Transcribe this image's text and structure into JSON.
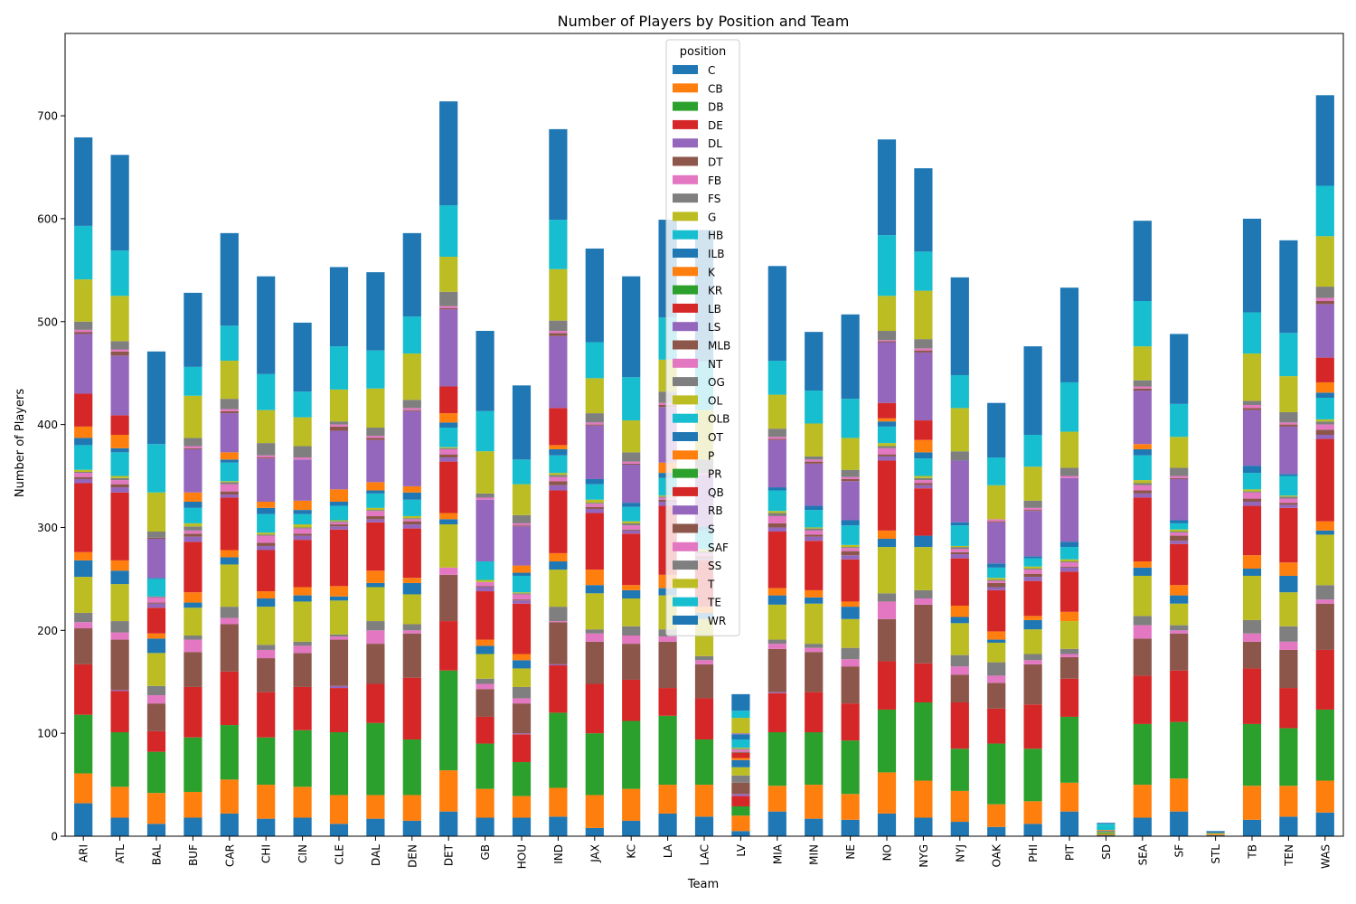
{
  "chart_data": {
    "type": "bar",
    "stacked": true,
    "title": "Number of Players by Position and Team",
    "xlabel": "Team",
    "ylabel": "Number of Players",
    "ylim": [
      0,
      780
    ],
    "yticks": [
      0,
      100,
      200,
      300,
      400,
      500,
      600,
      700
    ],
    "grid": false,
    "legend": {
      "title": "position",
      "placement": "top-center"
    },
    "categories": [
      "ARI",
      "ATL",
      "BAL",
      "BUF",
      "CAR",
      "CHI",
      "CIN",
      "CLE",
      "DAL",
      "DEN",
      "DET",
      "GB",
      "HOU",
      "IND",
      "JAX",
      "KC",
      "LA",
      "LAC",
      "LV",
      "MIA",
      "MIN",
      "NE",
      "NO",
      "NYG",
      "NYJ",
      "OAK",
      "PHI",
      "PIT",
      "SD",
      "SEA",
      "SF",
      "STL",
      "TB",
      "TEN",
      "WAS"
    ],
    "series": [
      {
        "name": "C",
        "color": "#1f77b4",
        "values": [
          32,
          18,
          12,
          18,
          22,
          17,
          18,
          12,
          17,
          15,
          24,
          18,
          18,
          19,
          8,
          15,
          22,
          19,
          5,
          24,
          17,
          16,
          22,
          18,
          14,
          9,
          12,
          24,
          1,
          18,
          24,
          1,
          16,
          19,
          23
        ]
      },
      {
        "name": "CB",
        "color": "#ff7f0e",
        "values": [
          29,
          30,
          30,
          25,
          33,
          33,
          30,
          28,
          23,
          25,
          40,
          28,
          21,
          28,
          32,
          31,
          28,
          31,
          15,
          25,
          33,
          25,
          40,
          36,
          30,
          22,
          22,
          28,
          1,
          32,
          32,
          1,
          33,
          30,
          31
        ]
      },
      {
        "name": "DB",
        "color": "#2ca02c",
        "values": [
          57,
          53,
          40,
          53,
          53,
          46,
          55,
          61,
          70,
          54,
          97,
          44,
          33,
          73,
          60,
          66,
          67,
          44,
          9,
          52,
          51,
          52,
          61,
          76,
          41,
          59,
          51,
          64,
          1,
          59,
          55,
          0,
          60,
          56,
          69
        ]
      },
      {
        "name": "DE",
        "color": "#d62728",
        "values": [
          49,
          40,
          20,
          49,
          52,
          44,
          42,
          43,
          38,
          60,
          48,
          26,
          27,
          46,
          48,
          40,
          27,
          40,
          10,
          38,
          39,
          36,
          47,
          38,
          45,
          34,
          43,
          37,
          0,
          47,
          50,
          0,
          54,
          39,
          58
        ]
      },
      {
        "name": "DL",
        "color": "#9467bd",
        "values": [
          0,
          1,
          0,
          0,
          0,
          0,
          0,
          2,
          0,
          0,
          0,
          0,
          1,
          1,
          0,
          0,
          0,
          0,
          2,
          1,
          0,
          0,
          0,
          0,
          0,
          0,
          0,
          0,
          0,
          0,
          0,
          0,
          0,
          0,
          0
        ]
      },
      {
        "name": "DT",
        "color": "#8c564b",
        "values": [
          35,
          49,
          27,
          34,
          46,
          33,
          33,
          45,
          39,
          43,
          45,
          27,
          29,
          41,
          41,
          35,
          45,
          33,
          11,
          42,
          39,
          36,
          41,
          57,
          27,
          25,
          39,
          21,
          0,
          36,
          36,
          0,
          26,
          37,
          45
        ]
      },
      {
        "name": "FB",
        "color": "#e377c2",
        "values": [
          6,
          7,
          8,
          12,
          6,
          8,
          7,
          3,
          13,
          3,
          7,
          5,
          5,
          1,
          8,
          8,
          5,
          4,
          0,
          5,
          4,
          7,
          17,
          6,
          8,
          7,
          4,
          3,
          0,
          13,
          3,
          0,
          8,
          8,
          4
        ]
      },
      {
        "name": "FS",
        "color": "#7f7f7f",
        "values": [
          9,
          11,
          9,
          4,
          11,
          5,
          4,
          2,
          9,
          6,
          0,
          5,
          11,
          14,
          4,
          9,
          7,
          4,
          7,
          4,
          4,
          11,
          8,
          8,
          11,
          13,
          6,
          5,
          0,
          9,
          5,
          0,
          13,
          15,
          14
        ]
      },
      {
        "name": "G",
        "color": "#bcbd22",
        "values": [
          35,
          36,
          32,
          27,
          41,
          37,
          39,
          33,
          33,
          29,
          42,
          24,
          18,
          36,
          35,
          27,
          33,
          36,
          8,
          34,
          39,
          28,
          45,
          42,
          31,
          19,
          24,
          27,
          1,
          39,
          21,
          1,
          43,
          33,
          49
        ]
      },
      {
        "name": "HB",
        "color": "#17becf",
        "values": [
          0,
          0,
          0,
          0,
          0,
          0,
          0,
          0,
          0,
          0,
          0,
          0,
          0,
          0,
          0,
          0,
          0,
          0,
          0,
          0,
          0,
          0,
          0,
          0,
          0,
          0,
          0,
          0,
          0,
          0,
          0,
          0,
          0,
          0,
          0
        ]
      },
      {
        "name": "ILB",
        "color": "#1f77b4",
        "values": [
          16,
          13,
          14,
          5,
          7,
          8,
          6,
          4,
          4,
          11,
          5,
          8,
          8,
          8,
          8,
          8,
          7,
          6,
          7,
          9,
          6,
          12,
          8,
          11,
          6,
          3,
          9,
          0,
          1,
          8,
          8,
          1,
          7,
          16,
          4
        ]
      },
      {
        "name": "K",
        "color": "#ff7f0e",
        "values": [
          8,
          10,
          5,
          10,
          7,
          7,
          8,
          10,
          12,
          5,
          6,
          6,
          6,
          8,
          15,
          5,
          13,
          6,
          2,
          7,
          7,
          5,
          8,
          0,
          11,
          8,
          4,
          9,
          1,
          6,
          10,
          0,
          13,
          13,
          9
        ]
      },
      {
        "name": "KR",
        "color": "#2ca02c",
        "values": [
          0,
          0,
          0,
          0,
          0,
          0,
          0,
          0,
          0,
          0,
          0,
          0,
          0,
          0,
          0,
          0,
          0,
          0,
          0,
          0,
          0,
          0,
          0,
          0,
          0,
          0,
          0,
          0,
          0,
          0,
          0,
          0,
          0,
          0,
          0
        ]
      },
      {
        "name": "LB",
        "color": "#d62728",
        "values": [
          67,
          66,
          25,
          49,
          51,
          40,
          46,
          55,
          47,
          48,
          50,
          47,
          49,
          61,
          55,
          50,
          67,
          45,
          5,
          55,
          48,
          41,
          68,
          46,
          46,
          40,
          34,
          39,
          0,
          62,
          40,
          0,
          48,
          53,
          80
        ]
      },
      {
        "name": "LS",
        "color": "#9467bd",
        "values": [
          4,
          5,
          4,
          5,
          3,
          4,
          4,
          3,
          3,
          4,
          4,
          4,
          3,
          5,
          4,
          3,
          4,
          2,
          0,
          4,
          4,
          4,
          4,
          3,
          4,
          3,
          4,
          4,
          0,
          4,
          3,
          0,
          4,
          3,
          4
        ]
      },
      {
        "name": "MLB",
        "color": "#8c564b",
        "values": [
          2,
          3,
          1,
          3,
          3,
          3,
          2,
          2,
          3,
          3,
          3,
          1,
          1,
          4,
          2,
          1,
          2,
          2,
          1,
          4,
          2,
          4,
          2,
          2,
          2,
          4,
          3,
          1,
          0,
          3,
          5,
          0,
          3,
          2,
          5
        ]
      },
      {
        "name": "NT",
        "color": "#e377c2",
        "values": [
          4,
          4,
          5,
          3,
          7,
          7,
          5,
          2,
          5,
          2,
          5,
          4,
          5,
          4,
          3,
          4,
          2,
          3,
          2,
          7,
          4,
          3,
          6,
          3,
          3,
          2,
          4,
          4,
          0,
          5,
          3,
          0,
          6,
          4,
          5
        ]
      },
      {
        "name": "OG",
        "color": "#7f7f7f",
        "values": [
          1,
          2,
          1,
          4,
          2,
          1,
          1,
          1,
          1,
          1,
          1,
          0,
          1,
          2,
          1,
          2,
          1,
          2,
          1,
          3,
          2,
          1,
          2,
          2,
          2,
          1,
          1,
          1,
          0,
          2,
          1,
          0,
          1,
          2,
          3
        ]
      },
      {
        "name": "OL",
        "color": "#bcbd22",
        "values": [
          2,
          2,
          0,
          3,
          1,
          2,
          3,
          1,
          2,
          2,
          1,
          2,
          1,
          2,
          3,
          2,
          1,
          2,
          1,
          2,
          1,
          2,
          3,
          2,
          1,
          2,
          2,
          2,
          0,
          3,
          2,
          0,
          2,
          1,
          2
        ]
      },
      {
        "name": "OLB",
        "color": "#17becf",
        "values": [
          24,
          23,
          17,
          15,
          18,
          18,
          10,
          14,
          14,
          16,
          19,
          18,
          16,
          17,
          15,
          14,
          17,
          18,
          8,
          20,
          17,
          19,
          16,
          17,
          20,
          10,
          8,
          12,
          4,
          24,
          6,
          0,
          16,
          19,
          21
        ]
      },
      {
        "name": "OT",
        "color": "#1f77b4",
        "values": [
          7,
          4,
          1,
          6,
          3,
          6,
          4,
          4,
          3,
          7,
          5,
          0,
          3,
          6,
          5,
          4,
          5,
          4,
          5,
          3,
          4,
          5,
          5,
          6,
          3,
          4,
          2,
          5,
          0,
          6,
          3,
          0,
          7,
          2,
          5
        ]
      },
      {
        "name": "P",
        "color": "#ff7f0e",
        "values": [
          11,
          13,
          0,
          9,
          7,
          6,
          9,
          12,
          8,
          6,
          9,
          0,
          7,
          4,
          0,
          0,
          10,
          0,
          0,
          0,
          0,
          0,
          3,
          12,
          0,
          0,
          0,
          0,
          0,
          5,
          0,
          0,
          0,
          0,
          10
        ]
      },
      {
        "name": "PR",
        "color": "#2ca02c",
        "values": [
          0,
          0,
          0,
          0,
          0,
          0,
          0,
          0,
          0,
          0,
          0,
          0,
          0,
          0,
          0,
          0,
          0,
          0,
          0,
          0,
          0,
          0,
          0,
          0,
          0,
          0,
          0,
          0,
          0,
          0,
          0,
          0,
          0,
          0,
          0
        ]
      },
      {
        "name": "QB",
        "color": "#d62728",
        "values": [
          32,
          19,
          0,
          0,
          0,
          0,
          0,
          0,
          0,
          0,
          26,
          0,
          0,
          36,
          0,
          0,
          0,
          0,
          0,
          0,
          0,
          0,
          15,
          19,
          0,
          0,
          0,
          0,
          0,
          0,
          0,
          0,
          0,
          0,
          24
        ]
      },
      {
        "name": "RB",
        "color": "#9467bd",
        "values": [
          58,
          58,
          38,
          42,
          38,
          42,
          40,
          57,
          41,
          73,
          75,
          60,
          38,
          70,
          52,
          37,
          54,
          50,
          1,
          46,
          41,
          38,
          59,
          66,
          60,
          40,
          44,
          62,
          0,
          52,
          40,
          0,
          54,
          46,
          52
        ]
      },
      {
        "name": "S",
        "color": "#8c564b",
        "values": [
          2,
          4,
          1,
          1,
          2,
          1,
          0,
          4,
          2,
          1,
          1,
          0,
          1,
          3,
          1,
          1,
          2,
          0,
          0,
          1,
          2,
          2,
          1,
          2,
          0,
          1,
          1,
          0,
          0,
          2,
          1,
          0,
          2,
          2,
          3
        ]
      },
      {
        "name": "SAF",
        "color": "#e377c2",
        "values": [
          2,
          2,
          0,
          2,
          2,
          2,
          2,
          2,
          2,
          2,
          2,
          2,
          2,
          2,
          2,
          2,
          2,
          2,
          0,
          2,
          2,
          2,
          1,
          2,
          0,
          2,
          2,
          2,
          0,
          2,
          2,
          0,
          3,
          2,
          3
        ]
      },
      {
        "name": "SS",
        "color": "#7f7f7f",
        "values": [
          8,
          8,
          6,
          8,
          10,
          12,
          11,
          3,
          8,
          8,
          14,
          4,
          8,
          10,
          9,
          9,
          11,
          13,
          0,
          8,
          3,
          7,
          9,
          9,
          9,
          0,
          7,
          8,
          0,
          6,
          8,
          0,
          4,
          10,
          11
        ]
      },
      {
        "name": "T",
        "color": "#bcbd22",
        "values": [
          41,
          44,
          38,
          41,
          37,
          32,
          28,
          31,
          38,
          45,
          34,
          41,
          30,
          50,
          34,
          31,
          31,
          48,
          15,
          33,
          32,
          31,
          34,
          47,
          42,
          33,
          33,
          35,
          0,
          33,
          30,
          0,
          46,
          35,
          49
        ]
      },
      {
        "name": "TE",
        "color": "#17becf",
        "values": [
          52,
          44,
          47,
          28,
          34,
          35,
          25,
          42,
          37,
          36,
          50,
          39,
          24,
          48,
          35,
          42,
          41,
          47,
          7,
          33,
          32,
          38,
          59,
          38,
          32,
          27,
          31,
          48,
          2,
          44,
          32,
          0,
          40,
          42,
          49
        ]
      },
      {
        "name": "WR",
        "color": "#1f77b4",
        "values": [
          86,
          93,
          90,
          72,
          90,
          95,
          67,
          77,
          76,
          81,
          101,
          78,
          72,
          88,
          91,
          98,
          95,
          128,
          16,
          92,
          57,
          82,
          93,
          81,
          95,
          53,
          86,
          92,
          1,
          78,
          68,
          1,
          91,
          90,
          88
        ]
      }
    ]
  }
}
